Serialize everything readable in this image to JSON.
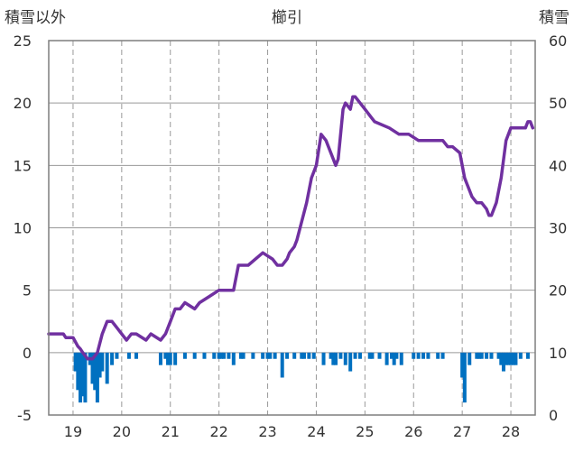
{
  "chart_data": {
    "type": "bar+line",
    "title": "櫛引",
    "left_axis_label": "積雪以外",
    "right_axis_label": "積雪",
    "colors": {
      "line": "#7030A0",
      "bar": "#0070C0",
      "grid": "#999999",
      "frame": "#7f7f7f"
    },
    "left_axis": {
      "min": -5,
      "max": 25,
      "ticks": [
        -5,
        0,
        5,
        10,
        15,
        20,
        25
      ]
    },
    "right_axis": {
      "min": 0,
      "max": 60,
      "ticks": [
        0,
        10,
        20,
        30,
        40,
        50,
        60
      ]
    },
    "x_axis": {
      "min": 18.5,
      "max": 28.5,
      "ticks": [
        19,
        20,
        21,
        22,
        23,
        24,
        25,
        26,
        27,
        28
      ],
      "grid": "dashed"
    },
    "series": [
      {
        "kind": "line",
        "axis": "left",
        "x": [
          18.5,
          18.8,
          18.85,
          19.0,
          19.1,
          19.15,
          19.2,
          19.3,
          19.4,
          19.5,
          19.6,
          19.7,
          19.8,
          19.9,
          20.0,
          20.1,
          20.2,
          20.3,
          20.5,
          20.6,
          20.8,
          20.9,
          21.0,
          21.1,
          21.2,
          21.3,
          21.5,
          21.6,
          21.8,
          22.0,
          22.3,
          22.4,
          22.6,
          22.9,
          23.1,
          23.2,
          23.25,
          23.3,
          23.4,
          23.45,
          23.55,
          23.6,
          23.7,
          23.8,
          23.9,
          24.0,
          24.1,
          24.2,
          24.3,
          24.4,
          24.45,
          24.5,
          24.55,
          24.6,
          24.7,
          24.75,
          24.8,
          24.9,
          25.0,
          25.1,
          25.2,
          25.5,
          25.7,
          25.9,
          26.1,
          26.3,
          26.5,
          26.6,
          26.7,
          26.8,
          26.95,
          27.05,
          27.1,
          27.2,
          27.3,
          27.4,
          27.5,
          27.55,
          27.6,
          27.7,
          27.8,
          27.9,
          28.0,
          28.1,
          28.2,
          28.3,
          28.35,
          28.4,
          28.45
        ],
        "y": [
          1.5,
          1.5,
          1.2,
          1.2,
          0.5,
          0.3,
          0.0,
          -0.5,
          -0.5,
          0.0,
          1.5,
          2.5,
          2.5,
          2.0,
          1.5,
          1.0,
          1.5,
          1.5,
          1.0,
          1.5,
          1.0,
          1.5,
          2.5,
          3.5,
          3.5,
          4.0,
          3.5,
          4.0,
          4.5,
          5.0,
          5.0,
          7.0,
          7.0,
          8.0,
          7.5,
          7.0,
          7.0,
          7.0,
          7.5,
          8.0,
          8.5,
          9.0,
          10.5,
          12.0,
          14.0,
          15.0,
          17.5,
          17.0,
          16.0,
          15.0,
          15.5,
          17.5,
          19.5,
          20.0,
          19.5,
          20.5,
          20.5,
          20.0,
          19.5,
          19.0,
          18.5,
          18.0,
          17.5,
          17.5,
          17.0,
          17.0,
          17.0,
          17.0,
          16.5,
          16.5,
          16.0,
          14.0,
          13.5,
          12.5,
          12.0,
          12.0,
          11.5,
          11.0,
          11.0,
          12.0,
          14.0,
          17.0,
          18.0,
          18.0,
          18.0,
          18.0,
          18.5,
          18.5,
          18.0
        ]
      },
      {
        "kind": "bar",
        "axis": "left",
        "x": [
          19.05,
          19.1,
          19.15,
          19.2,
          19.25,
          19.35,
          19.4,
          19.45,
          19.5,
          19.55,
          19.6,
          19.7,
          19.8,
          19.9,
          20.15,
          20.3,
          20.8,
          20.9,
          20.95,
          21.0,
          21.1,
          21.3,
          21.5,
          21.7,
          21.9,
          22.0,
          22.05,
          22.1,
          22.2,
          22.3,
          22.45,
          22.5,
          22.7,
          22.9,
          23.0,
          23.05,
          23.15,
          23.3,
          23.4,
          23.55,
          23.7,
          23.75,
          23.85,
          23.95,
          24.15,
          24.3,
          24.35,
          24.4,
          24.5,
          24.6,
          24.7,
          24.8,
          24.9,
          25.1,
          25.15,
          25.3,
          25.45,
          25.55,
          25.6,
          25.65,
          25.75,
          26.0,
          26.1,
          26.2,
          26.3,
          26.5,
          26.6,
          27.0,
          27.05,
          27.15,
          27.3,
          27.35,
          27.4,
          27.5,
          27.6,
          27.75,
          27.8,
          27.85,
          27.9,
          27.95,
          28.0,
          28.05,
          28.1,
          28.2,
          28.35
        ],
        "y": [
          -1.5,
          -3.0,
          -4.0,
          -3.5,
          -4.0,
          -1.0,
          -2.5,
          -3.0,
          -4.0,
          -2.0,
          -1.5,
          -2.5,
          -1.0,
          -0.5,
          -0.5,
          -0.5,
          -1.0,
          -0.5,
          -1.0,
          -1.0,
          -1.0,
          -0.5,
          -0.5,
          -0.5,
          -0.5,
          -0.5,
          -0.5,
          -0.5,
          -0.5,
          -1.0,
          -0.5,
          -0.5,
          -0.5,
          -0.5,
          -0.5,
          -0.5,
          -0.5,
          -2.0,
          -0.5,
          -0.5,
          -0.5,
          -0.5,
          -0.5,
          -0.5,
          -1.0,
          -0.5,
          -1.0,
          -1.0,
          -0.5,
          -1.0,
          -1.5,
          -0.5,
          -0.5,
          -0.5,
          -0.5,
          -0.5,
          -1.0,
          -0.5,
          -1.0,
          -0.5,
          -1.0,
          -0.5,
          -0.5,
          -0.5,
          -0.5,
          -0.5,
          -0.5,
          -2.0,
          -4.0,
          -1.0,
          -0.5,
          -0.5,
          -0.5,
          -0.5,
          -0.5,
          -0.5,
          -1.0,
          -1.5,
          -1.0,
          -1.0,
          -1.0,
          -1.0,
          -1.0,
          -0.5,
          -0.5
        ]
      }
    ]
  }
}
